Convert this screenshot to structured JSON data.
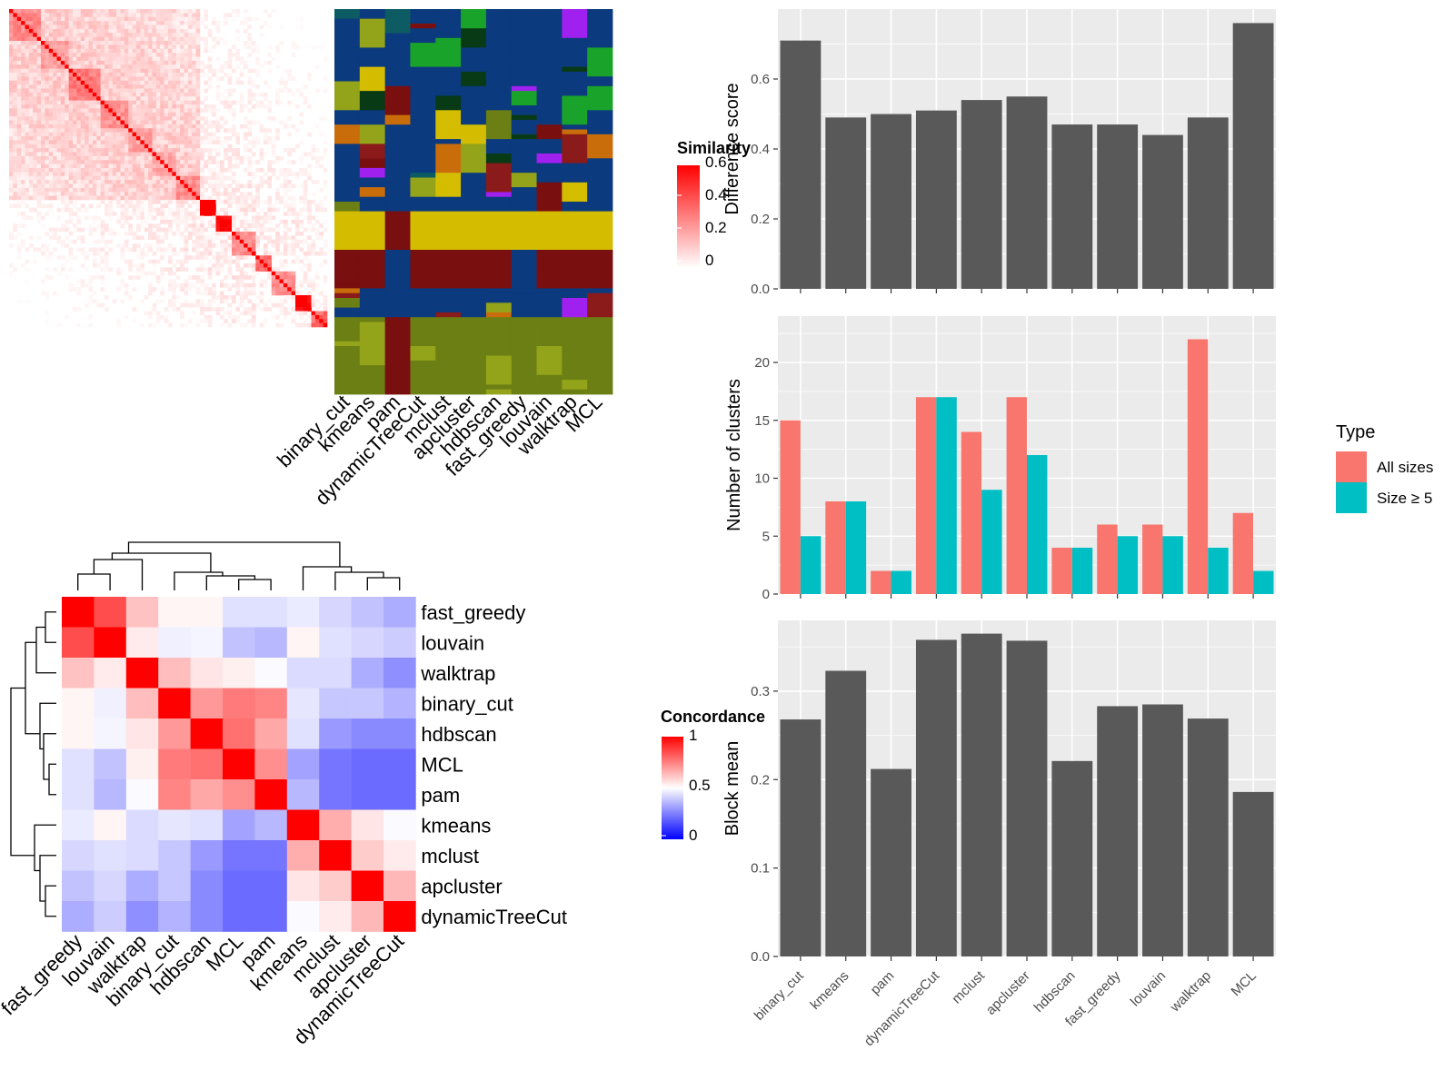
{
  "methods": [
    "binary_cut",
    "kmeans",
    "pam",
    "dynamicTreeCut",
    "mclust",
    "apcluster",
    "hdbscan",
    "fast_greedy",
    "louvain",
    "walktrap",
    "MCL"
  ],
  "similarity_legend": {
    "title": "Similarity",
    "ticks": [
      "0.6",
      "0.4",
      "0.2",
      "0"
    ],
    "colors": [
      "#ffffff",
      "#ff0000"
    ]
  },
  "concordance_legend": {
    "title": "Concordance",
    "ticks": [
      "1",
      "0.5",
      "0"
    ],
    "colors": [
      "#0000ff",
      "#ffffff",
      "#ff0000"
    ]
  },
  "type_legend": {
    "title": "Type",
    "entries": [
      "All sizes",
      "Size ≥ 5"
    ],
    "colors": [
      "#F8766D",
      "#00BFC4"
    ]
  },
  "cluster_palette": [
    "#0b3a7e",
    "#d4bd00",
    "#7a0f0f",
    "#6b7f14",
    "#1aa32a",
    "#93a31a",
    "#0d5c63",
    "#a020f0",
    "#c86d0a",
    "#083a16",
    "#8b1a1a"
  ],
  "chart_data": [
    {
      "type": "bar",
      "ylabel": "Difference score",
      "categories": [
        "binary_cut",
        "kmeans",
        "pam",
        "dynamicTreeCut",
        "mclust",
        "apcluster",
        "hdbscan",
        "fast_greedy",
        "louvain",
        "walktrap",
        "MCL"
      ],
      "values": [
        0.71,
        0.49,
        0.5,
        0.51,
        0.54,
        0.55,
        0.47,
        0.47,
        0.44,
        0.49,
        0.76
      ],
      "ylim": [
        0,
        0.8
      ],
      "yticks": [
        "0.0",
        "0.2",
        "0.4",
        "0.6"
      ]
    },
    {
      "type": "bar",
      "ylabel": "Number of clusters",
      "categories": [
        "binary_cut",
        "kmeans",
        "pam",
        "dynamicTreeCut",
        "mclust",
        "apcluster",
        "hdbscan",
        "fast_greedy",
        "louvain",
        "walktrap",
        "MCL"
      ],
      "series": [
        {
          "name": "All sizes",
          "values": [
            15,
            8,
            2,
            17,
            14,
            17,
            4,
            6,
            6,
            22,
            7
          ]
        },
        {
          "name": "Size ≥ 5",
          "values": [
            5,
            8,
            2,
            17,
            9,
            12,
            4,
            5,
            5,
            4,
            2
          ]
        }
      ],
      "ylim": [
        0,
        24
      ],
      "yticks": [
        "0",
        "5",
        "10",
        "15",
        "20"
      ]
    },
    {
      "type": "bar",
      "ylabel": "Block mean",
      "categories": [
        "binary_cut",
        "kmeans",
        "pam",
        "dynamicTreeCut",
        "mclust",
        "apcluster",
        "hdbscan",
        "fast_greedy",
        "louvain",
        "walktrap",
        "MCL"
      ],
      "values": [
        0.268,
        0.323,
        0.212,
        0.358,
        0.365,
        0.357,
        0.221,
        0.283,
        0.285,
        0.269,
        0.186
      ],
      "ylim": [
        0,
        0.38
      ],
      "yticks": [
        "0.0",
        "0.1",
        "0.2",
        "0.3"
      ]
    },
    {
      "type": "heatmap",
      "rows": [
        "fast_greedy",
        "louvain",
        "walktrap",
        "binary_cut",
        "hdbscan",
        "MCL",
        "pam",
        "kmeans",
        "mclust",
        "apcluster",
        "dynamicTreeCut"
      ],
      "columns": [
        "fast_greedy",
        "louvain",
        "walktrap",
        "binary_cut",
        "hdbscan",
        "MCL",
        "pam",
        "kmeans",
        "mclust",
        "apcluster",
        "dynamicTreeCut"
      ],
      "values": [
        [
          1.0,
          0.85,
          0.62,
          0.52,
          0.52,
          0.44,
          0.44,
          0.46,
          0.42,
          0.38,
          0.34
        ],
        [
          0.85,
          1.0,
          0.54,
          0.47,
          0.48,
          0.38,
          0.36,
          0.52,
          0.44,
          0.42,
          0.4
        ],
        [
          0.62,
          0.54,
          1.0,
          0.63,
          0.55,
          0.53,
          0.49,
          0.43,
          0.43,
          0.34,
          0.28
        ],
        [
          0.52,
          0.47,
          0.63,
          1.0,
          0.7,
          0.76,
          0.74,
          0.45,
          0.39,
          0.39,
          0.35
        ],
        [
          0.52,
          0.48,
          0.55,
          0.7,
          1.0,
          0.78,
          0.67,
          0.44,
          0.3,
          0.27,
          0.27
        ],
        [
          0.44,
          0.38,
          0.53,
          0.76,
          0.78,
          1.0,
          0.72,
          0.32,
          0.23,
          0.21,
          0.21
        ],
        [
          0.44,
          0.36,
          0.49,
          0.74,
          0.67,
          0.72,
          1.0,
          0.36,
          0.23,
          0.21,
          0.21
        ],
        [
          0.46,
          0.52,
          0.43,
          0.45,
          0.44,
          0.32,
          0.36,
          1.0,
          0.66,
          0.55,
          0.49
        ],
        [
          0.42,
          0.44,
          0.43,
          0.39,
          0.3,
          0.23,
          0.23,
          0.66,
          1.0,
          0.6,
          0.54
        ],
        [
          0.38,
          0.42,
          0.34,
          0.39,
          0.27,
          0.21,
          0.21,
          0.55,
          0.6,
          1.0,
          0.64
        ],
        [
          0.34,
          0.4,
          0.28,
          0.35,
          0.27,
          0.21,
          0.21,
          0.49,
          0.54,
          0.64,
          1.0
        ]
      ]
    }
  ]
}
